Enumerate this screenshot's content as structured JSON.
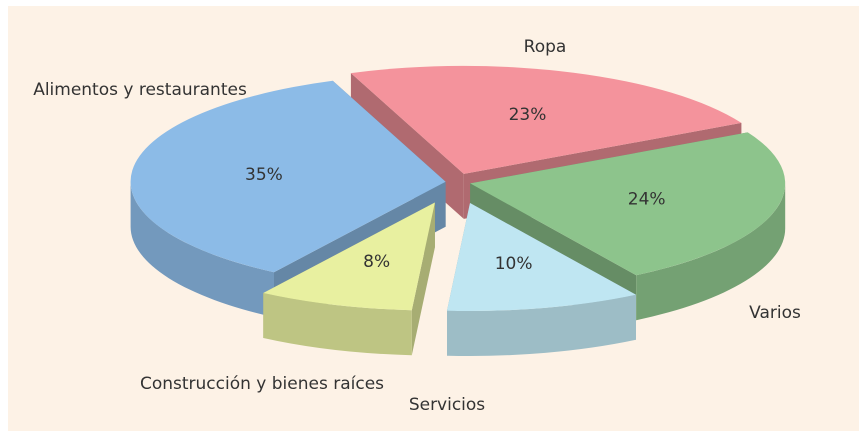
{
  "chart_data": {
    "type": "pie3d",
    "categories": [
      "Ropa",
      "Varios",
      "Servicios",
      "Construcción y bienes raíces",
      "Alimentos y restaurantes"
    ],
    "values": [
      23,
      24,
      10,
      8,
      35
    ],
    "value_labels": [
      "23%",
      "24%",
      "10%",
      "8%",
      "35%"
    ],
    "colors": [
      "#f4939c",
      "#8dc48c",
      "#bfe6f2",
      "#e8f0a0",
      "#8cbbe7"
    ]
  }
}
